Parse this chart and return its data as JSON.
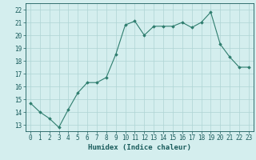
{
  "x": [
    0,
    1,
    2,
    3,
    4,
    5,
    6,
    7,
    8,
    9,
    10,
    11,
    12,
    13,
    14,
    15,
    16,
    17,
    18,
    19,
    20,
    21,
    22,
    23
  ],
  "y": [
    14.7,
    14.0,
    13.5,
    12.8,
    14.2,
    15.5,
    16.3,
    16.3,
    16.7,
    18.5,
    20.8,
    21.1,
    20.0,
    20.7,
    20.7,
    20.7,
    21.0,
    20.6,
    21.0,
    21.8,
    19.3,
    18.3,
    17.5,
    17.5
  ],
  "line_color": "#2e7d6e",
  "marker": "D",
  "marker_size": 1.8,
  "bg_color": "#d4eeee",
  "grid_color": "#aed4d4",
  "xlabel": "Humidex (Indice chaleur)",
  "xlabel_color": "#1a5c5c",
  "xlabel_fontsize": 6.5,
  "tick_color": "#1a5c5c",
  "tick_fontsize": 5.5,
  "xlim": [
    -0.5,
    23.5
  ],
  "ylim": [
    12.5,
    22.5
  ],
  "yticks": [
    13,
    14,
    15,
    16,
    17,
    18,
    19,
    20,
    21,
    22
  ],
  "xticks": [
    0,
    1,
    2,
    3,
    4,
    5,
    6,
    7,
    8,
    9,
    10,
    11,
    12,
    13,
    14,
    15,
    16,
    17,
    18,
    19,
    20,
    21,
    22,
    23
  ]
}
